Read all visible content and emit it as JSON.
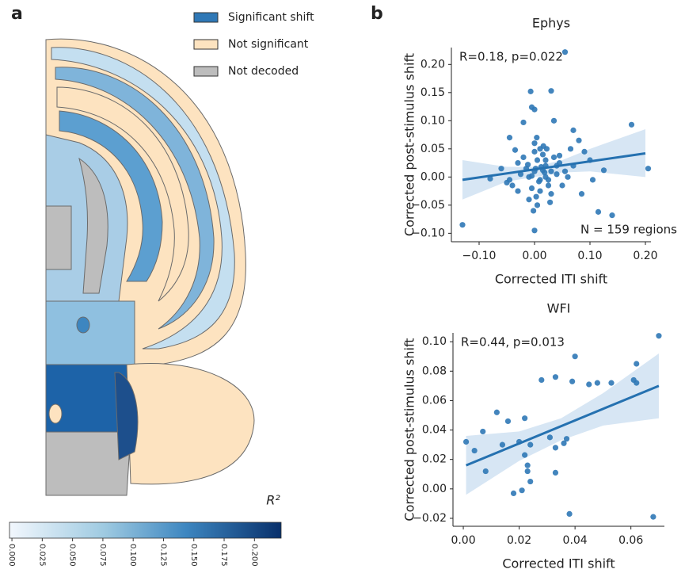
{
  "panel_labels": [
    "a",
    "b"
  ],
  "chart_data": [
    {
      "type": "map",
      "legend": [
        {
          "name": "Significant shift",
          "color": "#2f78b6"
        },
        {
          "name": "Not significant",
          "color": "#fde3c0"
        },
        {
          "name": "Not decoded",
          "color": "#bdbdbd"
        }
      ],
      "colorbar_label": "R²",
      "clim": [
        -0.002,
        0.222
      ],
      "cticks": [
        {
          "value": 0,
          "label": "0.000"
        },
        {
          "value": 0.025,
          "label": "0.025"
        },
        {
          "value": 0.05,
          "label": "0.050"
        },
        {
          "value": 0.075,
          "label": "0.075"
        },
        {
          "value": 0.1,
          "label": "0.100"
        },
        {
          "value": 0.125,
          "label": "0.125"
        },
        {
          "value": 0.15,
          "label": "0.150"
        },
        {
          "value": 0.175,
          "label": "0.175"
        },
        {
          "value": 0.2,
          "label": "0.200"
        }
      ]
    },
    {
      "type": "scatter",
      "title": "Ephys",
      "xlabel": "Corrected ITI shift",
      "ylabel": "Corrected post-stimulus shift",
      "annotation": "R=0.18, p=0.022",
      "note": "N = 159 regions",
      "color": "#2f78b6",
      "xlim": [
        -0.15,
        0.21
      ],
      "ylim": [
        -0.115,
        0.23
      ],
      "xticks": [
        {
          "value": -0.1,
          "label": "−0.10"
        },
        {
          "value": 0,
          "label": "0.00"
        },
        {
          "value": 0.1,
          "label": "0.10"
        },
        {
          "value": 0.2,
          "label": "0.20"
        }
      ],
      "yticks": [
        {
          "value": -0.1,
          "label": "−0.10"
        },
        {
          "value": -0.05,
          "label": "−0.05"
        },
        {
          "value": 0,
          "label": "0.00"
        },
        {
          "value": 0.05,
          "label": "0.05"
        },
        {
          "value": 0.1,
          "label": "0.10"
        },
        {
          "value": 0.15,
          "label": "0.15"
        },
        {
          "value": 0.2,
          "label": "0.20"
        }
      ],
      "x": [
        -0.13,
        0.055,
        0.03,
        -0.007,
        -0.005,
        0.0,
        0.175,
        0.205,
        0.14,
        0.115,
        0.0,
        -0.045,
        0.07,
        0.08,
        0.1,
        0.125,
        0.105,
        0.065,
        0.09,
        -0.02,
        0.035,
        -0.035,
        -0.06,
        -0.08,
        -0.05,
        -0.03,
        -0.01,
        0.0,
        0.01,
        0.02,
        0.005,
        -0.015,
        0.015,
        0.025,
        0.04,
        0.045,
        0.03,
        -0.005,
        0.0,
        0.01,
        0.02,
        -0.02,
        -0.01,
        0.005,
        0.015,
        0.03,
        0.04,
        0.05,
        0.06,
        -0.025,
        -0.04,
        0.0,
        0.01,
        0.02,
        -0.005,
        0.008,
        0.012,
        0.018,
        0.025,
        -0.012,
        0.003,
        0.035,
        0.045,
        -0.03,
        0.055,
        0.002,
        -0.002,
        0.022,
        0.028,
        0.07,
        0.085,
        -0.045,
        0.004,
        0.016
      ],
      "y": [
        -0.085,
        0.222,
        0.153,
        0.152,
        0.124,
        0.12,
        0.093,
        0.015,
        -0.068,
        -0.062,
        -0.095,
        0.07,
        0.083,
        0.065,
        0.03,
        0.012,
        -0.005,
        0.05,
        0.045,
        0.097,
        0.1,
        0.048,
        0.015,
        -0.003,
        -0.01,
        -0.025,
        0.0,
        0.01,
        -0.005,
        0.02,
        0.03,
        0.015,
        0.04,
        -0.015,
        0.005,
        0.025,
        -0.03,
        -0.02,
        0.045,
        0.05,
        0.0,
        0.035,
        -0.04,
        -0.05,
        0.012,
        0.01,
        0.02,
        -0.015,
        0.0,
        0.005,
        -0.015,
        0.06,
        -0.025,
        0.03,
        0.002,
        -0.008,
        0.018,
        0.008,
        -0.005,
        0.022,
        -0.035,
        0.035,
        0.038,
        0.025,
        0.01,
        0.015,
        -0.06,
        0.05,
        -0.045,
        0.02,
        -0.03,
        -0.005,
        0.07,
        0.055
      ],
      "fit": {
        "x": [
          -0.13,
          0.2
        ],
        "y": [
          -0.005,
          0.042
        ]
      },
      "ci": {
        "x": [
          -0.13,
          -0.05,
          0.0,
          0.05,
          0.1,
          0.2
        ],
        "upper": [
          0.03,
          0.018,
          0.018,
          0.03,
          0.05,
          0.085
        ],
        "lower": [
          -0.04,
          -0.008,
          0.0,
          0.008,
          0.01,
          0.0
        ]
      }
    },
    {
      "type": "scatter",
      "title": "WFI",
      "xlabel": "Corrected ITI shift",
      "ylabel": "Corrected post-stimulus shift",
      "annotation": "R=0.44, p=0.013",
      "color": "#2f78b6",
      "xlim": [
        -0.0037,
        0.072
      ],
      "ylim": [
        -0.0254,
        0.106
      ],
      "xticks": [
        {
          "value": 0,
          "label": "0.00"
        },
        0.02,
        0.04,
        0.06
      ],
      "yticks": [
        {
          "value": -0.02,
          "label": "−0.02"
        },
        {
          "value": 0,
          "label": "0.00"
        },
        0.02,
        0.04,
        0.06,
        0.08,
        {
          "value": 0.1,
          "label": "0.10"
        }
      ],
      "x": [
        0.001,
        0.004,
        0.007,
        0.008,
        0.012,
        0.014,
        0.016,
        0.018,
        0.02,
        0.021,
        0.022,
        0.022,
        0.023,
        0.023,
        0.024,
        0.024,
        0.028,
        0.031,
        0.033,
        0.033,
        0.033,
        0.036,
        0.037,
        0.038,
        0.039,
        0.04,
        0.045,
        0.048,
        0.053,
        0.061,
        0.062,
        0.062,
        0.068,
        0.07
      ],
      "y": [
        0.032,
        0.026,
        0.039,
        0.012,
        0.052,
        0.03,
        0.046,
        -0.003,
        0.032,
        -0.001,
        0.048,
        0.023,
        0.016,
        0.012,
        0.03,
        0.005,
        0.074,
        0.035,
        0.011,
        0.076,
        0.028,
        0.031,
        0.034,
        -0.017,
        0.073,
        0.09,
        0.071,
        0.072,
        0.072,
        0.074,
        0.085,
        0.072,
        -0.019,
        0.104
      ],
      "fit": {
        "x": [
          0.001,
          0.07
        ],
        "y": [
          0.016,
          0.07
        ]
      },
      "ci": {
        "x": [
          0.001,
          0.02,
          0.035,
          0.05,
          0.07
        ],
        "upper": [
          0.036,
          0.039,
          0.048,
          0.065,
          0.092
        ],
        "lower": [
          -0.004,
          0.019,
          0.033,
          0.043,
          0.048
        ]
      }
    }
  ]
}
